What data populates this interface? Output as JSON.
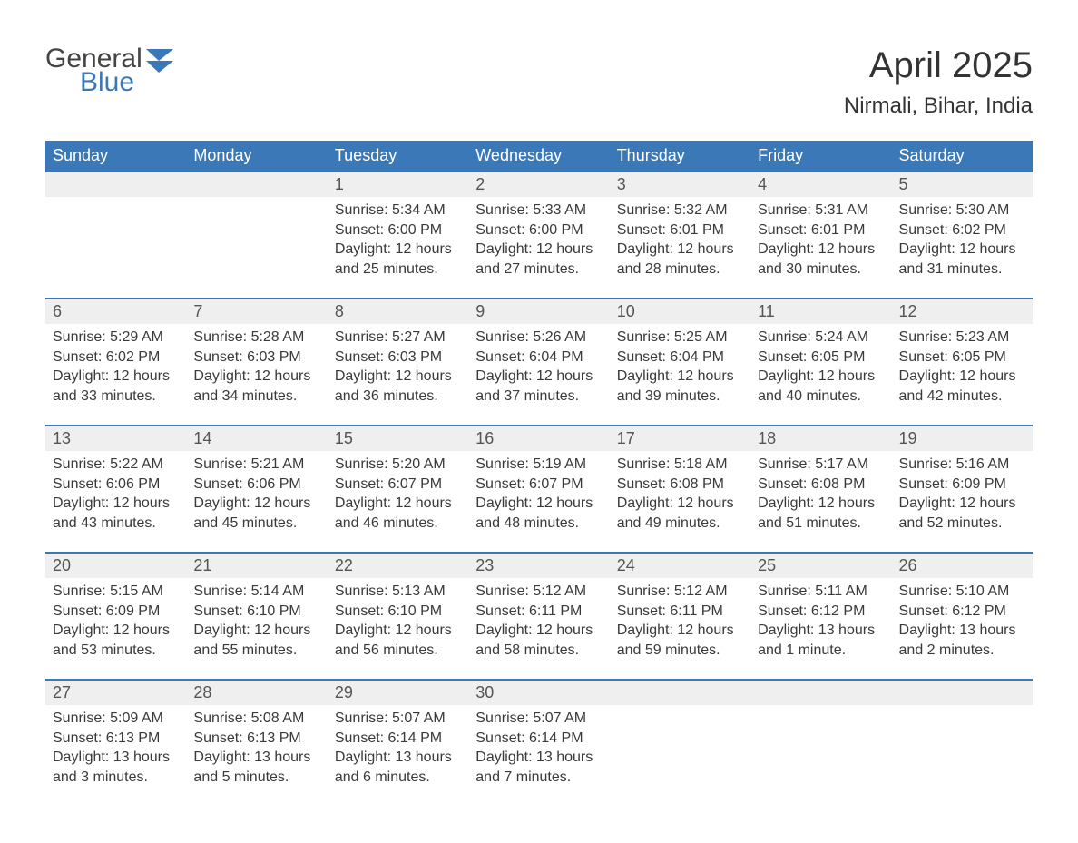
{
  "brand": {
    "word1": "General",
    "word2": "Blue",
    "accent_color": "#3b78b8"
  },
  "title": "April 2025",
  "location": "Nirmali, Bihar, India",
  "colors": {
    "header_bg": "#3b78b8",
    "header_text": "#ffffff",
    "daynum_bg": "#efefef",
    "row_divider": "#3b78b8",
    "body_text": "#3a3a3a",
    "page_bg": "#ffffff"
  },
  "weekdays": [
    "Sunday",
    "Monday",
    "Tuesday",
    "Wednesday",
    "Thursday",
    "Friday",
    "Saturday"
  ],
  "weeks": [
    [
      null,
      null,
      {
        "n": "1",
        "sr": "Sunrise: 5:34 AM",
        "ss": "Sunset: 6:00 PM",
        "dl": "Daylight: 12 hours and 25 minutes."
      },
      {
        "n": "2",
        "sr": "Sunrise: 5:33 AM",
        "ss": "Sunset: 6:00 PM",
        "dl": "Daylight: 12 hours and 27 minutes."
      },
      {
        "n": "3",
        "sr": "Sunrise: 5:32 AM",
        "ss": "Sunset: 6:01 PM",
        "dl": "Daylight: 12 hours and 28 minutes."
      },
      {
        "n": "4",
        "sr": "Sunrise: 5:31 AM",
        "ss": "Sunset: 6:01 PM",
        "dl": "Daylight: 12 hours and 30 minutes."
      },
      {
        "n": "5",
        "sr": "Sunrise: 5:30 AM",
        "ss": "Sunset: 6:02 PM",
        "dl": "Daylight: 12 hours and 31 minutes."
      }
    ],
    [
      {
        "n": "6",
        "sr": "Sunrise: 5:29 AM",
        "ss": "Sunset: 6:02 PM",
        "dl": "Daylight: 12 hours and 33 minutes."
      },
      {
        "n": "7",
        "sr": "Sunrise: 5:28 AM",
        "ss": "Sunset: 6:03 PM",
        "dl": "Daylight: 12 hours and 34 minutes."
      },
      {
        "n": "8",
        "sr": "Sunrise: 5:27 AM",
        "ss": "Sunset: 6:03 PM",
        "dl": "Daylight: 12 hours and 36 minutes."
      },
      {
        "n": "9",
        "sr": "Sunrise: 5:26 AM",
        "ss": "Sunset: 6:04 PM",
        "dl": "Daylight: 12 hours and 37 minutes."
      },
      {
        "n": "10",
        "sr": "Sunrise: 5:25 AM",
        "ss": "Sunset: 6:04 PM",
        "dl": "Daylight: 12 hours and 39 minutes."
      },
      {
        "n": "11",
        "sr": "Sunrise: 5:24 AM",
        "ss": "Sunset: 6:05 PM",
        "dl": "Daylight: 12 hours and 40 minutes."
      },
      {
        "n": "12",
        "sr": "Sunrise: 5:23 AM",
        "ss": "Sunset: 6:05 PM",
        "dl": "Daylight: 12 hours and 42 minutes."
      }
    ],
    [
      {
        "n": "13",
        "sr": "Sunrise: 5:22 AM",
        "ss": "Sunset: 6:06 PM",
        "dl": "Daylight: 12 hours and 43 minutes."
      },
      {
        "n": "14",
        "sr": "Sunrise: 5:21 AM",
        "ss": "Sunset: 6:06 PM",
        "dl": "Daylight: 12 hours and 45 minutes."
      },
      {
        "n": "15",
        "sr": "Sunrise: 5:20 AM",
        "ss": "Sunset: 6:07 PM",
        "dl": "Daylight: 12 hours and 46 minutes."
      },
      {
        "n": "16",
        "sr": "Sunrise: 5:19 AM",
        "ss": "Sunset: 6:07 PM",
        "dl": "Daylight: 12 hours and 48 minutes."
      },
      {
        "n": "17",
        "sr": "Sunrise: 5:18 AM",
        "ss": "Sunset: 6:08 PM",
        "dl": "Daylight: 12 hours and 49 minutes."
      },
      {
        "n": "18",
        "sr": "Sunrise: 5:17 AM",
        "ss": "Sunset: 6:08 PM",
        "dl": "Daylight: 12 hours and 51 minutes."
      },
      {
        "n": "19",
        "sr": "Sunrise: 5:16 AM",
        "ss": "Sunset: 6:09 PM",
        "dl": "Daylight: 12 hours and 52 minutes."
      }
    ],
    [
      {
        "n": "20",
        "sr": "Sunrise: 5:15 AM",
        "ss": "Sunset: 6:09 PM",
        "dl": "Daylight: 12 hours and 53 minutes."
      },
      {
        "n": "21",
        "sr": "Sunrise: 5:14 AM",
        "ss": "Sunset: 6:10 PM",
        "dl": "Daylight: 12 hours and 55 minutes."
      },
      {
        "n": "22",
        "sr": "Sunrise: 5:13 AM",
        "ss": "Sunset: 6:10 PM",
        "dl": "Daylight: 12 hours and 56 minutes."
      },
      {
        "n": "23",
        "sr": "Sunrise: 5:12 AM",
        "ss": "Sunset: 6:11 PM",
        "dl": "Daylight: 12 hours and 58 minutes."
      },
      {
        "n": "24",
        "sr": "Sunrise: 5:12 AM",
        "ss": "Sunset: 6:11 PM",
        "dl": "Daylight: 12 hours and 59 minutes."
      },
      {
        "n": "25",
        "sr": "Sunrise: 5:11 AM",
        "ss": "Sunset: 6:12 PM",
        "dl": "Daylight: 13 hours and 1 minute."
      },
      {
        "n": "26",
        "sr": "Sunrise: 5:10 AM",
        "ss": "Sunset: 6:12 PM",
        "dl": "Daylight: 13 hours and 2 minutes."
      }
    ],
    [
      {
        "n": "27",
        "sr": "Sunrise: 5:09 AM",
        "ss": "Sunset: 6:13 PM",
        "dl": "Daylight: 13 hours and 3 minutes."
      },
      {
        "n": "28",
        "sr": "Sunrise: 5:08 AM",
        "ss": "Sunset: 6:13 PM",
        "dl": "Daylight: 13 hours and 5 minutes."
      },
      {
        "n": "29",
        "sr": "Sunrise: 5:07 AM",
        "ss": "Sunset: 6:14 PM",
        "dl": "Daylight: 13 hours and 6 minutes."
      },
      {
        "n": "30",
        "sr": "Sunrise: 5:07 AM",
        "ss": "Sunset: 6:14 PM",
        "dl": "Daylight: 13 hours and 7 minutes."
      },
      null,
      null,
      null
    ]
  ]
}
